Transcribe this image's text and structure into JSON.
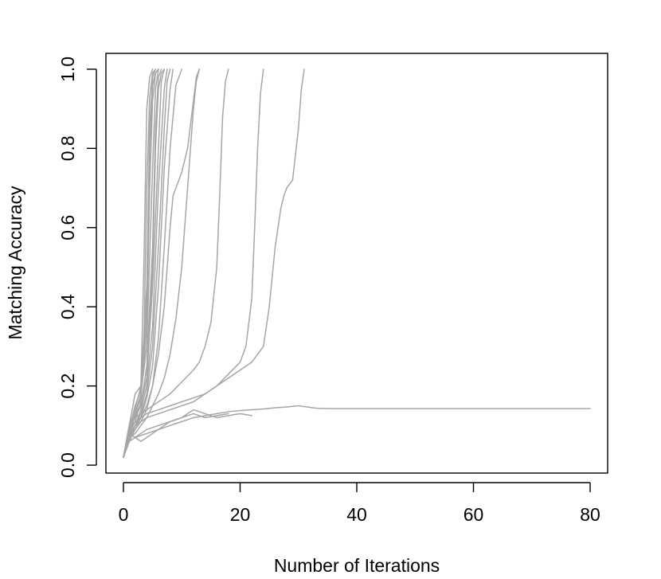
{
  "chart_data": {
    "type": "line",
    "title": "",
    "xlabel": "Number of Iterations",
    "ylabel": "Matching Accuracy",
    "xlim": [
      -3,
      83
    ],
    "ylim": [
      -0.02,
      1.04
    ],
    "x_ticks": [
      "0",
      "20",
      "40",
      "60",
      "80"
    ],
    "y_ticks": [
      "0.0",
      "0.2",
      "0.4",
      "0.6",
      "0.8",
      "1.0"
    ],
    "grid": false,
    "legend": "none",
    "line_color": "#a6a6a6",
    "series": [
      {
        "x": [
          0,
          1,
          2,
          3,
          3.5,
          4,
          4.5,
          5
        ],
        "y": [
          0.02,
          0.1,
          0.18,
          0.2,
          0.5,
          0.9,
          0.98,
          1.0
        ]
      },
      {
        "x": [
          0,
          1,
          2,
          3,
          3.5,
          4,
          4.5,
          5,
          5.5
        ],
        "y": [
          0.02,
          0.09,
          0.15,
          0.19,
          0.3,
          0.7,
          0.93,
          0.99,
          1.0
        ]
      },
      {
        "x": [
          0,
          1,
          2,
          3,
          4,
          4.5,
          5,
          5.5
        ],
        "y": [
          0.02,
          0.1,
          0.14,
          0.2,
          0.45,
          0.85,
          0.98,
          1.0
        ]
      },
      {
        "x": [
          0,
          1,
          2,
          3,
          4,
          4.5,
          5,
          5.5,
          6
        ],
        "y": [
          0.02,
          0.08,
          0.13,
          0.17,
          0.35,
          0.7,
          0.92,
          0.99,
          1.0
        ]
      },
      {
        "x": [
          0,
          1,
          2,
          3,
          4,
          5,
          5.5,
          6
        ],
        "y": [
          0.02,
          0.1,
          0.12,
          0.18,
          0.3,
          0.75,
          0.95,
          1.0
        ]
      },
      {
        "x": [
          0,
          1,
          2,
          3,
          4,
          5,
          5.5,
          6,
          6.5
        ],
        "y": [
          0.02,
          0.07,
          0.13,
          0.15,
          0.25,
          0.55,
          0.85,
          0.98,
          1.0
        ]
      },
      {
        "x": [
          0,
          1,
          2,
          3,
          4,
          5,
          6,
          6.5,
          7
        ],
        "y": [
          0.02,
          0.08,
          0.11,
          0.16,
          0.22,
          0.45,
          0.8,
          0.97,
          1.0
        ]
      },
      {
        "x": [
          0,
          1,
          2,
          3,
          4,
          5,
          6,
          7,
          7.5
        ],
        "y": [
          0.02,
          0.07,
          0.1,
          0.14,
          0.2,
          0.35,
          0.7,
          0.95,
          1.0
        ]
      },
      {
        "x": [
          0,
          1,
          2,
          3,
          4,
          5,
          6,
          7,
          7.5,
          8
        ],
        "y": [
          0.02,
          0.06,
          0.1,
          0.13,
          0.18,
          0.3,
          0.55,
          0.85,
          0.97,
          1.0
        ]
      },
      {
        "x": [
          0,
          1,
          2,
          3,
          4,
          5,
          6,
          7,
          8,
          8.5
        ],
        "y": [
          0.02,
          0.07,
          0.1,
          0.12,
          0.17,
          0.25,
          0.45,
          0.75,
          0.95,
          1.0
        ]
      },
      {
        "x": [
          0,
          1,
          2,
          3,
          4,
          5,
          5.5,
          6,
          6.5,
          7
        ],
        "y": [
          0.02,
          0.09,
          0.12,
          0.15,
          0.22,
          0.5,
          0.8,
          0.95,
          0.99,
          1.0
        ]
      },
      {
        "x": [
          0,
          1,
          2,
          3,
          4,
          4.5,
          5,
          5.5,
          6
        ],
        "y": [
          0.02,
          0.1,
          0.13,
          0.18,
          0.4,
          0.8,
          0.96,
          0.99,
          1.0
        ]
      },
      {
        "x": [
          0,
          1,
          2,
          3,
          4,
          5,
          6,
          7,
          8,
          9,
          10
        ],
        "y": [
          0.02,
          0.07,
          0.09,
          0.11,
          0.14,
          0.2,
          0.32,
          0.55,
          0.8,
          0.96,
          1.0
        ]
      },
      {
        "x": [
          0,
          1,
          2,
          3,
          4,
          5,
          6,
          7,
          8,
          8.5,
          9,
          10,
          11,
          12,
          12.5,
          13
        ],
        "y": [
          0.02,
          0.06,
          0.09,
          0.12,
          0.15,
          0.2,
          0.28,
          0.4,
          0.6,
          0.68,
          0.7,
          0.74,
          0.8,
          0.92,
          0.98,
          1.0
        ]
      },
      {
        "x": [
          0,
          1,
          2,
          3,
          4,
          5,
          6,
          7,
          8,
          9,
          10,
          11,
          12,
          12.5,
          13
        ],
        "y": [
          0.02,
          0.07,
          0.08,
          0.1,
          0.12,
          0.15,
          0.18,
          0.22,
          0.28,
          0.37,
          0.5,
          0.7,
          0.9,
          0.97,
          1.0
        ]
      },
      {
        "x": [
          0,
          1,
          2,
          4,
          6,
          8,
          10,
          12,
          13,
          14,
          15,
          16,
          16.5,
          17,
          17.5,
          18
        ],
        "y": [
          0.02,
          0.1,
          0.12,
          0.14,
          0.16,
          0.18,
          0.21,
          0.24,
          0.26,
          0.3,
          0.36,
          0.5,
          0.68,
          0.88,
          0.97,
          1.0
        ]
      },
      {
        "x": [
          0,
          1,
          2,
          4,
          6,
          8,
          10,
          12,
          14,
          16,
          18,
          20,
          21,
          22,
          22.5,
          23,
          23.5,
          24
        ],
        "y": [
          0.02,
          0.09,
          0.11,
          0.13,
          0.14,
          0.15,
          0.16,
          0.17,
          0.18,
          0.2,
          0.23,
          0.26,
          0.3,
          0.42,
          0.6,
          0.8,
          0.94,
          1.0
        ]
      },
      {
        "x": [
          0,
          1,
          2,
          4,
          6,
          8,
          10,
          12,
          14,
          16,
          18,
          20,
          22,
          24,
          25,
          26,
          27,
          27.5,
          28,
          29,
          30,
          30.5,
          31
        ],
        "y": [
          0.02,
          0.08,
          0.1,
          0.12,
          0.13,
          0.14,
          0.15,
          0.16,
          0.18,
          0.2,
          0.22,
          0.24,
          0.26,
          0.3,
          0.4,
          0.55,
          0.65,
          0.68,
          0.7,
          0.72,
          0.85,
          0.95,
          1.0
        ]
      },
      {
        "x": [
          0,
          1,
          2,
          4,
          6,
          8,
          10,
          12,
          14,
          16,
          18,
          20,
          22,
          24,
          26,
          28,
          30,
          31,
          33,
          35,
          40,
          50,
          60,
          70,
          80
        ],
        "y": [
          0.02,
          0.06,
          0.07,
          0.08,
          0.09,
          0.1,
          0.11,
          0.12,
          0.125,
          0.13,
          0.135,
          0.138,
          0.14,
          0.142,
          0.145,
          0.147,
          0.15,
          0.148,
          0.144,
          0.143,
          0.143,
          0.143,
          0.143,
          0.143,
          0.143
        ]
      },
      {
        "x": [
          0,
          1,
          2,
          4,
          6,
          8,
          10,
          12,
          14,
          16,
          18,
          20,
          22
        ],
        "y": [
          0.02,
          0.08,
          0.07,
          0.09,
          0.1,
          0.11,
          0.12,
          0.14,
          0.13,
          0.12,
          0.125,
          0.13,
          0.125
        ]
      },
      {
        "x": [
          0,
          1,
          2,
          3,
          4,
          6,
          8,
          10,
          12,
          14,
          16,
          18
        ],
        "y": [
          0.02,
          0.08,
          0.07,
          0.06,
          0.07,
          0.09,
          0.11,
          0.12,
          0.13,
          0.12,
          0.125,
          0.13
        ]
      }
    ]
  }
}
